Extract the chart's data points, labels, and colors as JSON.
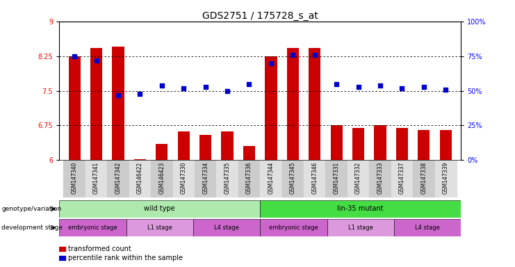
{
  "title": "GDS2751 / 175728_s_at",
  "samples": [
    "GSM147340",
    "GSM147341",
    "GSM147342",
    "GSM146422",
    "GSM146423",
    "GSM147330",
    "GSM147334",
    "GSM147335",
    "GSM147336",
    "GSM147344",
    "GSM147345",
    "GSM147346",
    "GSM147331",
    "GSM147332",
    "GSM147333",
    "GSM147337",
    "GSM147338",
    "GSM147339"
  ],
  "bar_values": [
    8.25,
    8.42,
    8.45,
    6.02,
    6.35,
    6.62,
    6.55,
    6.62,
    6.3,
    8.25,
    8.42,
    8.42,
    6.75,
    6.7,
    6.75,
    6.7,
    6.65,
    6.65
  ],
  "dot_values": [
    75,
    72,
    47,
    48,
    54,
    52,
    53,
    50,
    55,
    70,
    76,
    76,
    55,
    53,
    54,
    52,
    53,
    51
  ],
  "bar_color": "#cc0000",
  "dot_color": "#0000cc",
  "ylim_left": [
    6,
    9
  ],
  "ylim_right": [
    0,
    100
  ],
  "yticks_left": [
    6,
    6.75,
    7.5,
    8.25,
    9
  ],
  "yticks_right": [
    0,
    25,
    50,
    75,
    100
  ],
  "ytick_labels_right": [
    "0%",
    "25%",
    "50%",
    "75%",
    "100%"
  ],
  "hlines": [
    6.75,
    7.5,
    8.25
  ],
  "genotype_groups": [
    {
      "label": "wild type",
      "start": 0,
      "end": 9,
      "color": "#aeeaae"
    },
    {
      "label": "lin-35 mutant",
      "start": 9,
      "end": 18,
      "color": "#44dd44"
    }
  ],
  "stage_groups": [
    {
      "label": "embryonic stage",
      "start": 0,
      "end": 3,
      "color": "#cc66cc"
    },
    {
      "label": "L1 stage",
      "start": 3,
      "end": 6,
      "color": "#dd99dd"
    },
    {
      "label": "L4 stage",
      "start": 6,
      "end": 9,
      "color": "#cc66cc"
    },
    {
      "label": "embryonic stage",
      "start": 9,
      "end": 12,
      "color": "#cc66cc"
    },
    {
      "label": "L1 stage",
      "start": 12,
      "end": 15,
      "color": "#dd99dd"
    },
    {
      "label": "L4 stage",
      "start": 15,
      "end": 18,
      "color": "#cc66cc"
    }
  ],
  "genotype_label": "genotype/variation",
  "stage_label": "development stage",
  "legend_bar": "transformed count",
  "legend_dot": "percentile rank within the sample",
  "background_color": "#ffffff",
  "title_fontsize": 10,
  "tick_fontsize": 7,
  "sample_fontsize": 5.5,
  "annot_fontsize": 7,
  "legend_fontsize": 7
}
